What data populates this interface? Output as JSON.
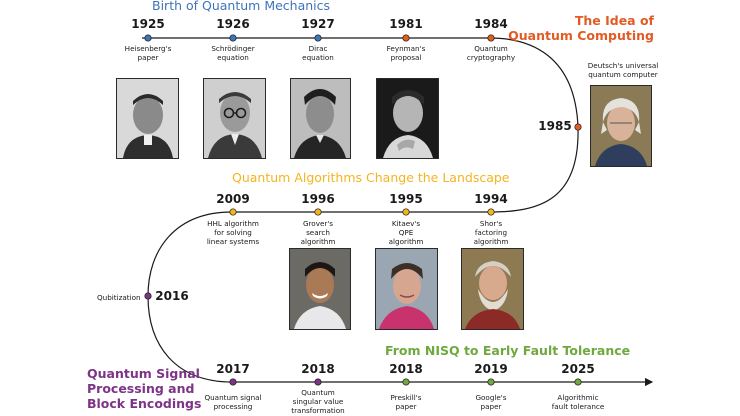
{
  "colors": {
    "blue": "#3f74b9",
    "red": "#e35b24",
    "yellow": "#f3b51f",
    "purple": "#7d3386",
    "green": "#6fa93d",
    "line": "#1a1a1a"
  },
  "sections": {
    "birth": "Birth of Quantum Mechanics",
    "idea": "The Idea of\nQuantum Computing",
    "algorithms": "Quantum Algorithms Change the Landscape",
    "qsp": "Quantum Signal\nProcessing and\nBlock Encodings",
    "nisq": "From NISQ to Early Fault Tolerance"
  },
  "row1": [
    {
      "year": "1925",
      "label": "Heisenberg's\npaper"
    },
    {
      "year": "1926",
      "label": "Schrödinger\nequation"
    },
    {
      "year": "1927",
      "label": "Dirac\nequation"
    },
    {
      "year": "1981",
      "label": "Feynman's\nproposal"
    },
    {
      "year": "1984",
      "label": "Quantum\ncryptography"
    }
  ],
  "event_1985": {
    "year": "1985",
    "label": "Deutsch's universal\nquantum computer"
  },
  "row2": [
    {
      "year": "2009",
      "label": "HHL algorithm\nfor solving\nlinear systems"
    },
    {
      "year": "1996",
      "label": "Grover's\nsearch\nalgorithm"
    },
    {
      "year": "1995",
      "label": "Kitaev's\nQPE\nalgorithm"
    },
    {
      "year": "1994",
      "label": "Shor's\nfactoring\nalgorithm"
    }
  ],
  "event_2016": {
    "year": "2016",
    "label": "Qubitization"
  },
  "row3": [
    {
      "year": "2017",
      "label": "Quantum signal\nprocessing"
    },
    {
      "year": "2018",
      "label": "Quantum\nsingular value\ntransformation"
    },
    {
      "year": "2018",
      "label": "Preskill's\npaper"
    },
    {
      "year": "2019",
      "label": "Google's\npaper"
    },
    {
      "year": "2025",
      "label": "Algorithmic\nfault tolerance"
    }
  ],
  "photos": [
    "heisenberg-portrait",
    "schrodinger-portrait",
    "dirac-portrait",
    "feynman-portrait",
    "deutsch-portrait",
    "grover-portrait",
    "kitaev-portrait",
    "shor-portrait"
  ]
}
